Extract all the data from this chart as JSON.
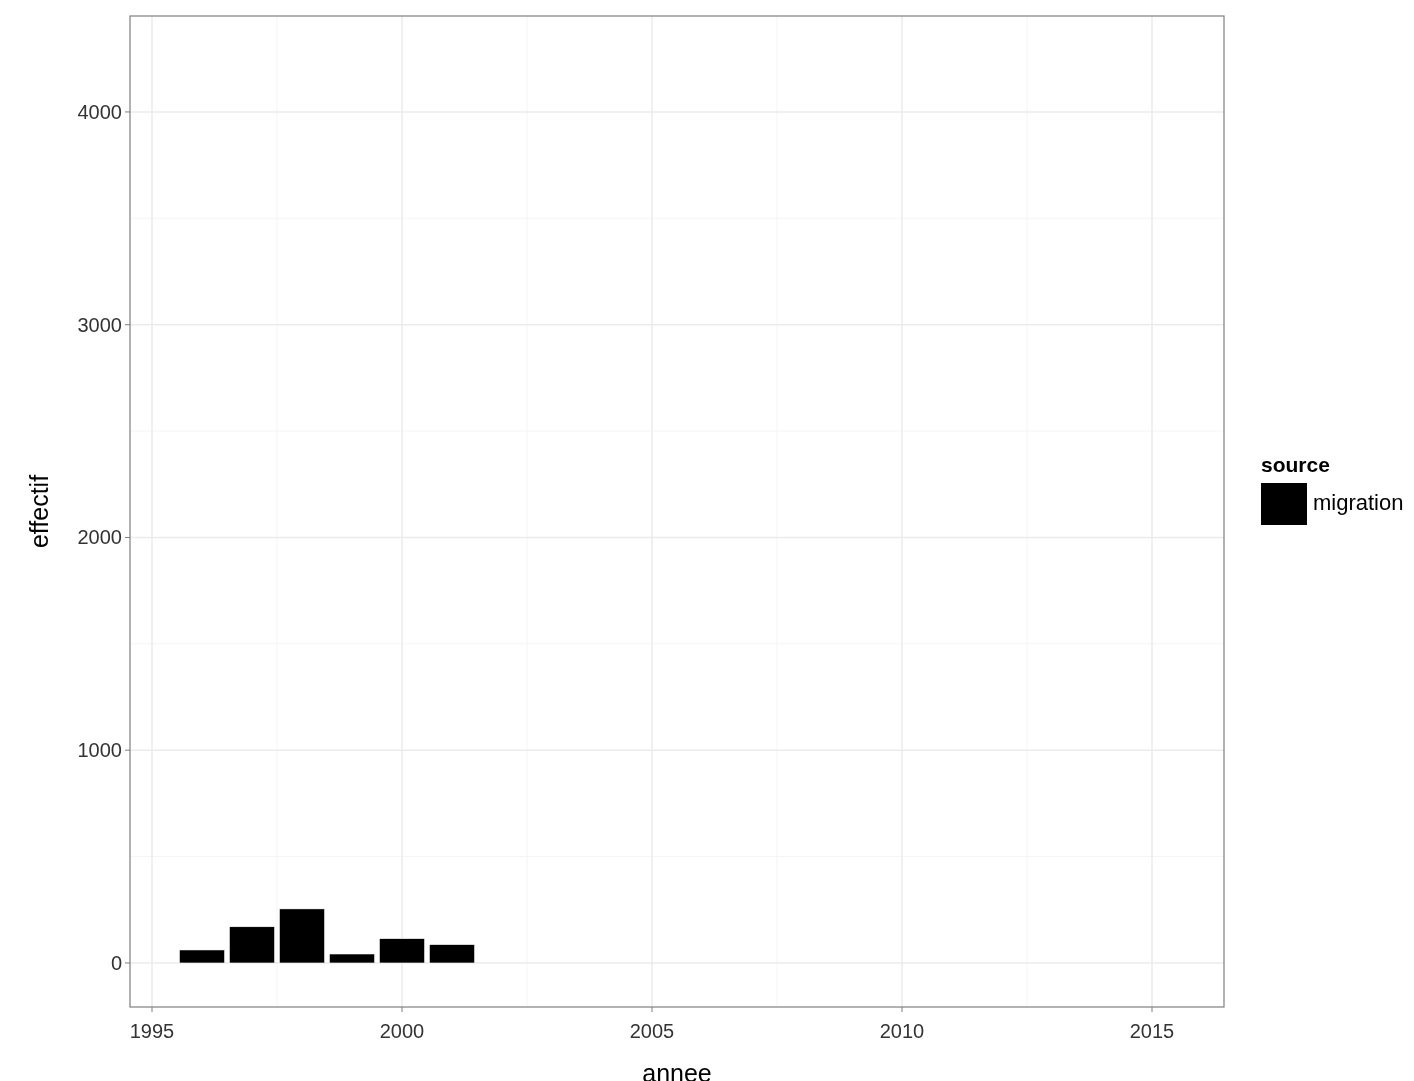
{
  "chart_data": {
    "type": "bar",
    "xlabel": "annee",
    "ylabel": "effectif",
    "legend_title": "source",
    "legend": "right",
    "grid": true,
    "x": [
      1996,
      1997,
      1998,
      1999,
      2000,
      2001
    ],
    "series": [
      {
        "name": "migration",
        "color": "#000000",
        "values": [
          61,
          170,
          254,
          42,
          114,
          86
        ]
      }
    ],
    "xlim": [
      1994.56,
      2016.44
    ],
    "xticks": [
      1995,
      2000,
      2005,
      2010,
      2015
    ],
    "ylim": [
      -207,
      4451
    ],
    "yticks": [
      0,
      1000,
      2000,
      3000,
      4000
    ]
  }
}
